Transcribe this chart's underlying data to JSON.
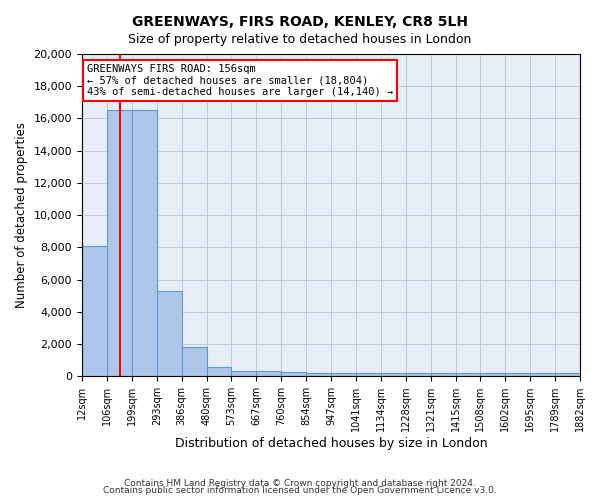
{
  "title1": "GREENWAYS, FIRS ROAD, KENLEY, CR8 5LH",
  "title2": "Size of property relative to detached houses in London",
  "xlabel": "Distribution of detached houses by size in London",
  "ylabel": "Number of detached properties",
  "bin_labels": [
    "12sqm",
    "106sqm",
    "199sqm",
    "293sqm",
    "386sqm",
    "480sqm",
    "573sqm",
    "667sqm",
    "760sqm",
    "854sqm",
    "947sqm",
    "1041sqm",
    "1134sqm",
    "1228sqm",
    "1321sqm",
    "1415sqm",
    "1508sqm",
    "1602sqm",
    "1695sqm",
    "1789sqm",
    "1882sqm"
  ],
  "bin_edges": [
    12,
    106,
    199,
    293,
    386,
    480,
    573,
    667,
    760,
    854,
    947,
    1041,
    1134,
    1228,
    1321,
    1415,
    1508,
    1602,
    1695,
    1789,
    1882
  ],
  "bar_heights": [
    8100,
    16500,
    16500,
    5300,
    1800,
    600,
    350,
    300,
    250,
    200,
    200,
    200,
    200,
    200,
    200,
    200,
    200,
    200,
    200,
    200
  ],
  "bar_color": "#aec6e8",
  "bar_edgecolor": "#5b9bd5",
  "grid_color": "#c0c8d8",
  "background_color": "#e8eef8",
  "vline_x": 156,
  "vline_color": "red",
  "annotation_text": "GREENWAYS FIRS ROAD: 156sqm\n← 57% of detached houses are smaller (18,804)\n43% of semi-detached houses are larger (14,140) →",
  "annotation_box_color": "red",
  "ylim": [
    0,
    20000
  ],
  "footer1": "Contains HM Land Registry data © Crown copyright and database right 2024.",
  "footer2": "Contains public sector information licensed under the Open Government Licence v3.0."
}
